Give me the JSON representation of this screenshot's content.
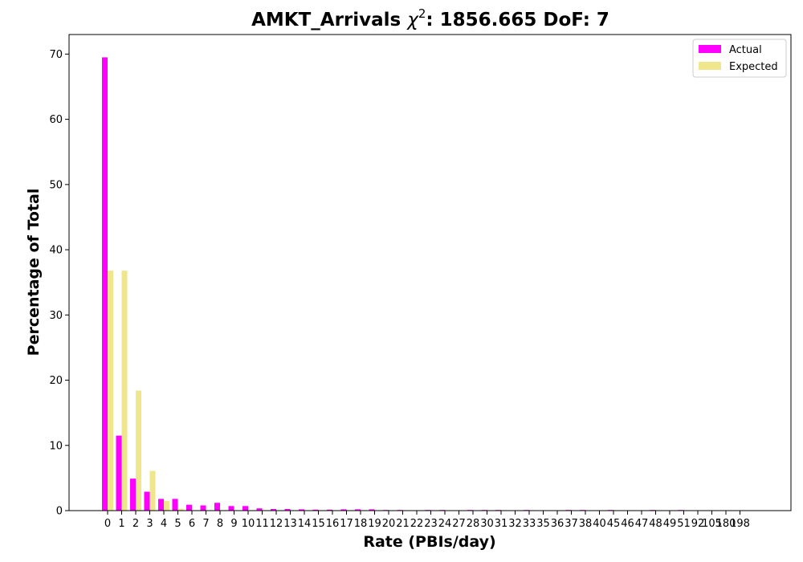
{
  "chart_data": {
    "type": "bar",
    "title": {
      "prefix": "AMKT_Arrivals ",
      "chi": "χ",
      "exponent": "2",
      "suffix": ": 1856.665 DoF: 7"
    },
    "xlabel": "Rate (PBIs/day)",
    "ylabel": "Percentage of Total",
    "ylim": [
      0,
      73
    ],
    "yticks": [
      0,
      10,
      20,
      30,
      40,
      50,
      60,
      70
    ],
    "grid": false,
    "legend_position": "top-right",
    "categories": [
      "0",
      "1",
      "2",
      "3",
      "4",
      "5",
      "6",
      "7",
      "8",
      "9",
      "10",
      "11",
      "12",
      "13",
      "14",
      "15",
      "16",
      "17",
      "18",
      "19",
      "20",
      "21",
      "22",
      "23",
      "24",
      "27",
      "28",
      "30",
      "31",
      "32",
      "33",
      "35",
      "36",
      "37",
      "38",
      "40",
      "45",
      "46",
      "47",
      "48",
      "49",
      "51",
      "92",
      "105",
      "180",
      "198"
    ],
    "series": [
      {
        "name": "Actual",
        "color": "#ff00ff",
        "values": [
          69.5,
          11.5,
          4.9,
          2.9,
          1.8,
          1.8,
          0.9,
          0.8,
          1.2,
          0.7,
          0.7,
          0.35,
          0.25,
          0.25,
          0.2,
          0.15,
          0.15,
          0.2,
          0.2,
          0.2,
          0.1,
          0.1,
          0.05,
          0.1,
          0.1,
          0.05,
          0.1,
          0.1,
          0.1,
          0.05,
          0.1,
          0.05,
          0.05,
          0.1,
          0.1,
          0.05,
          0.1,
          0.05,
          0.05,
          0.1,
          0.05,
          0.1,
          0.05,
          0.05,
          0.05,
          0.05
        ]
      },
      {
        "name": "Expected",
        "color": "#f0e68c",
        "values": [
          36.8,
          36.8,
          18.4,
          6.1,
          1.5,
          0.3,
          0.05,
          0.01,
          0,
          0,
          0,
          0,
          0,
          0,
          0,
          0,
          0,
          0,
          0,
          0,
          0,
          0,
          0,
          0,
          0,
          0,
          0,
          0,
          0,
          0,
          0,
          0,
          0,
          0,
          0,
          0,
          0,
          0,
          0,
          0,
          0,
          0,
          0,
          0,
          0,
          0
        ]
      }
    ]
  }
}
